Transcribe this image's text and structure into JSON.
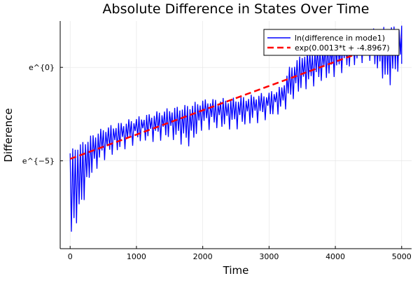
{
  "chart_data": {
    "type": "line",
    "title": "Absolute Difference in States Over Time",
    "xlabel": "Time",
    "ylabel": "Difference",
    "xlim": [
      -150,
      5150
    ],
    "ylim_ln": [
      -9.7,
      2.48
    ],
    "xticks": [
      0,
      1000,
      2000,
      3000,
      4000,
      5000
    ],
    "xtick_labels": [
      "0",
      "1000",
      "2000",
      "3000",
      "4000",
      "5000"
    ],
    "yticks_ln": [
      0,
      -5
    ],
    "ytick_labels": [
      "e^{0}",
      "e^{−5}"
    ],
    "grid": true,
    "legend_position": "top-right",
    "series": [
      {
        "name": "ln(difference in mode1)",
        "color": "#0000ff",
        "style": "solid",
        "note_values": "oscillating signal; upper/lower envelope in ln units",
        "t": [
          0,
          100,
          200,
          300,
          500,
          1000,
          1500,
          1800,
          2000,
          2500,
          3000,
          3200,
          3300,
          3500,
          4000,
          4500,
          4800,
          5000
        ],
        "upper": [
          -4.6,
          -4.3,
          -4.1,
          -3.8,
          -3.35,
          -2.8,
          -2.3,
          -2.1,
          -1.85,
          -1.75,
          -1.45,
          -1.1,
          -0.15,
          0.6,
          1.35,
          1.9,
          2.05,
          2.1
        ],
        "lower": [
          -9.4,
          -8.3,
          -7.3,
          -6.0,
          -5.0,
          -4.1,
          -3.9,
          -4.3,
          -3.35,
          -3.35,
          -2.8,
          -2.5,
          -2.0,
          -1.3,
          -0.5,
          0.4,
          -1.1,
          0.0
        ]
      },
      {
        "name": "exp(0.0013*t + -4.8967)",
        "color": "#ff0000",
        "style": "dashed",
        "slope": 0.0013,
        "intercept": -4.8967,
        "t_range": [
          0,
          5000
        ]
      }
    ]
  }
}
